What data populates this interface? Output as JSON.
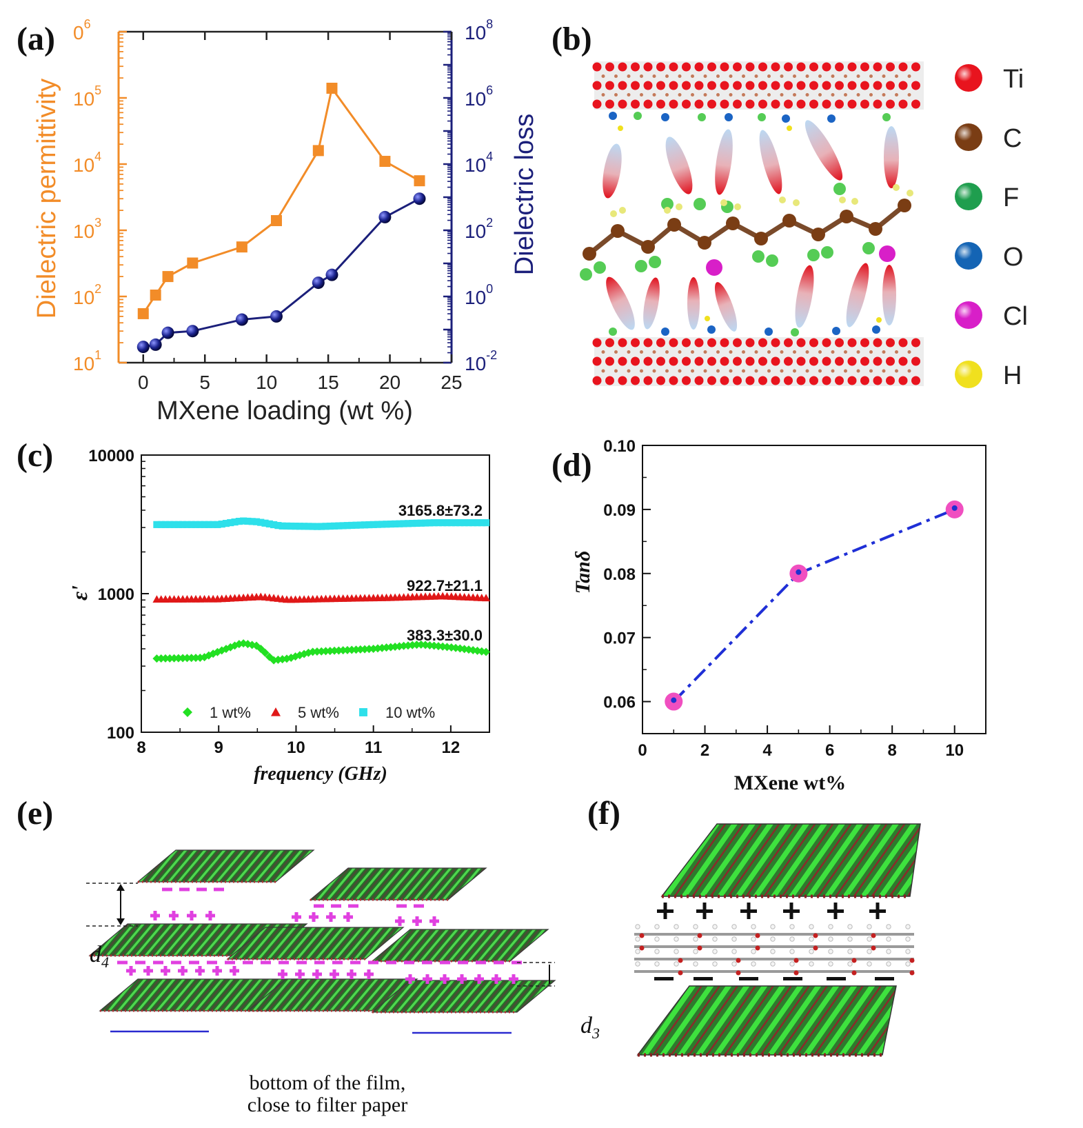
{
  "panels": {
    "a": {
      "label": "(a)"
    },
    "b": {
      "label": "(b)",
      "legend": [
        {
          "name": "Ti",
          "color": "#e8141e"
        },
        {
          "name": "C",
          "color": "#7a3d14"
        },
        {
          "name": "F",
          "color": "#1f9e4e"
        },
        {
          "name": "O",
          "color": "#1464b4"
        },
        {
          "name": "Cl",
          "color": "#d81fc8"
        },
        {
          "name": "H",
          "color": "#f0e01e"
        }
      ]
    },
    "c": {
      "label": "(c)"
    },
    "d": {
      "label": "(d)"
    },
    "e": {
      "label": "(e)",
      "d4": "d",
      "d4_sub": "4",
      "d3": "d",
      "d3_sub": "3",
      "caption_line1": "bottom of the film,",
      "caption_line2": "close to filter paper"
    },
    "f": {
      "label": "(f)"
    }
  },
  "chart_data": [
    {
      "panel": "a",
      "type": "line",
      "xlabel": "MXene loading (wt %)",
      "ylabel_left": "Dielectric permittivity",
      "ylabel_right": "Dielectric loss",
      "xlim": [
        -2,
        25
      ],
      "xticks": [
        "0",
        "5",
        "10",
        "15",
        "20",
        "25"
      ],
      "yticks_left": [
        {
          "base": "10",
          "exp": "1"
        },
        {
          "base": "10",
          "exp": "2"
        },
        {
          "base": "10",
          "exp": "3"
        },
        {
          "base": "10",
          "exp": "4"
        },
        {
          "base": "10",
          "exp": "5"
        },
        {
          "base": "0",
          "exp": "6"
        }
      ],
      "yticks_right": [
        {
          "base": "10",
          "exp": "-2"
        },
        {
          "base": "10",
          "exp": "0"
        },
        {
          "base": "10",
          "exp": "2"
        },
        {
          "base": "10",
          "exp": "4"
        },
        {
          "base": "10",
          "exp": "6"
        },
        {
          "base": "10",
          "exp": "8"
        }
      ],
      "ylim_left_log10": [
        1,
        6
      ],
      "ylim_right_log10": [
        -2,
        8
      ],
      "colors": {
        "left": "#f28c28",
        "right": "#1b1f7a"
      },
      "series": [
        {
          "name": "Dielectric permittivity",
          "axis": "left",
          "marker": "square",
          "x": [
            0,
            1,
            2,
            4,
            8,
            10.8,
            14.2,
            15.3,
            19.6,
            22.4
          ],
          "values": [
            55,
            105,
            200,
            320,
            560,
            1400,
            16000,
            140000,
            11000,
            5600
          ]
        },
        {
          "name": "Dielectric loss",
          "axis": "right",
          "marker": "sphere",
          "x": [
            0,
            1,
            2,
            4,
            8,
            10.8,
            14.2,
            15.3,
            19.6,
            22.4
          ],
          "values": [
            0.03,
            0.035,
            0.08,
            0.09,
            0.2,
            0.25,
            2.6,
            4.5,
            250,
            900
          ]
        }
      ]
    },
    {
      "panel": "c",
      "type": "scatter",
      "xlabel": "frequency (GHz)",
      "ylabel": "ε'",
      "xlim": [
        8,
        12.5
      ],
      "xticks": [
        "8",
        "9",
        "10",
        "11",
        "12"
      ],
      "yticks": [
        "100",
        "1000",
        "10000"
      ],
      "ylim_log10": [
        2,
        4
      ],
      "series": [
        {
          "name": "1 wt%",
          "marker": "diamond",
          "color": "#22e022",
          "annotation": "383.3±30.0",
          "base": 383.3,
          "profile": [
            [
              8.2,
              340
            ],
            [
              8.8,
              345
            ],
            [
              9.1,
              400
            ],
            [
              9.3,
              440
            ],
            [
              9.5,
              420
            ],
            [
              9.7,
              330
            ],
            [
              9.9,
              340
            ],
            [
              10.2,
              380
            ],
            [
              11.0,
              400
            ],
            [
              11.6,
              430
            ],
            [
              12.0,
              410
            ],
            [
              12.45,
              380
            ]
          ]
        },
        {
          "name": "5 wt%",
          "marker": "triangle",
          "color": "#e01818",
          "annotation": "922.7±21.1",
          "base": 922.7,
          "profile": [
            [
              8.2,
              910
            ],
            [
              9.0,
              915
            ],
            [
              9.55,
              950
            ],
            [
              9.9,
              905
            ],
            [
              10.5,
              920
            ],
            [
              11.2,
              935
            ],
            [
              11.9,
              960
            ],
            [
              12.45,
              930
            ]
          ]
        },
        {
          "name": "10 wt%",
          "marker": "square",
          "color": "#2ee0ea",
          "annotation": "3165.8±73.2",
          "base": 3165.8,
          "profile": [
            [
              8.2,
              3150
            ],
            [
              9.0,
              3150
            ],
            [
              9.3,
              3350
            ],
            [
              9.5,
              3300
            ],
            [
              9.8,
              3080
            ],
            [
              10.3,
              3050
            ],
            [
              11.0,
              3150
            ],
            [
              11.8,
              3250
            ],
            [
              12.45,
              3250
            ]
          ]
        }
      ]
    },
    {
      "panel": "d",
      "type": "line",
      "xlabel": "MXene wt%",
      "ylabel": "Tanδ",
      "xlim": [
        0,
        11
      ],
      "ylim": [
        0.055,
        0.1
      ],
      "xticks": [
        "0",
        "2",
        "4",
        "6",
        "8",
        "10"
      ],
      "yticks": [
        "0.06",
        "0.07",
        "0.08",
        "0.09",
        "0.10"
      ],
      "series": [
        {
          "name": "Tanδ",
          "color": "#1f2fd6",
          "marker_color": "#f04fc0",
          "x": [
            1,
            5,
            10
          ],
          "values": [
            0.06,
            0.08,
            0.09
          ]
        }
      ]
    }
  ]
}
